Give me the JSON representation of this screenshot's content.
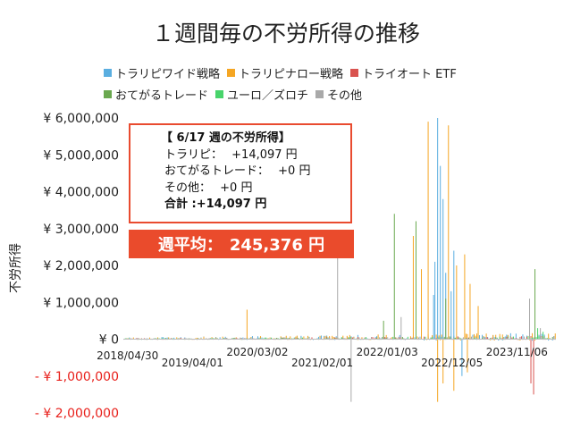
{
  "chart_data": {
    "type": "bar",
    "title": "１週間毎の不労所得の推移",
    "ylabel": "不労所得",
    "ylim": [
      -2000000,
      6000000
    ],
    "y_ticks": [
      {
        "value": 6000000,
        "label": "¥ 6,000,000"
      },
      {
        "value": 5000000,
        "label": "¥ 5,000,000"
      },
      {
        "value": 4000000,
        "label": "¥ 4,000,000"
      },
      {
        "value": 3000000,
        "label": "¥ 3,000,000"
      },
      {
        "value": 2000000,
        "label": "¥ 2,000,000"
      },
      {
        "value": 1000000,
        "label": "¥ 1,000,000"
      },
      {
        "value": 0,
        "label": "¥ 0"
      },
      {
        "value": -1000000,
        "label": "- ¥ 1,000,000"
      },
      {
        "value": -2000000,
        "label": "- ¥ 2,000,000"
      }
    ],
    "x_ticks": [
      "2018/04/30",
      "2019/04/01",
      "2020/03/02",
      "2021/02/01",
      "2022/01/03",
      "2022/12/05",
      "2023/11/06"
    ],
    "x_tick_weeks": [
      0,
      48,
      96,
      144,
      192,
      240,
      288
    ],
    "total_weeks": 320,
    "grid": false,
    "legend_position": "top",
    "series": [
      {
        "name": "トラリピワイド戦略",
        "color": "#5aaee0",
        "notable_weeks": [
          [
            232,
            6000000
          ],
          [
            234,
            4700000
          ],
          [
            236,
            3800000
          ],
          [
            230,
            2100000
          ],
          [
            238,
            1800000
          ],
          [
            242,
            1300000
          ],
          [
            244,
            2400000
          ],
          [
            250,
            -1000000
          ],
          [
            229,
            1200000
          ]
        ]
      },
      {
        "name": "トラリピナロー戦略",
        "color": "#f5a623",
        "notable_weeks": [
          [
            225,
            5900000
          ],
          [
            240,
            5800000
          ],
          [
            214,
            2800000
          ],
          [
            220,
            1900000
          ],
          [
            246,
            2000000
          ],
          [
            252,
            2300000
          ],
          [
            256,
            1500000
          ],
          [
            262,
            900000
          ],
          [
            236,
            -1200000
          ],
          [
            244,
            -1400000
          ],
          [
            254,
            -900000
          ],
          [
            232,
            -1700000
          ],
          [
            91,
            800000
          ]
        ]
      },
      {
        "name": "トライオート ETF",
        "color": "#d9534f",
        "notable_weeks": [
          [
            301,
            -1200000
          ],
          [
            303,
            -1500000
          ]
        ]
      },
      {
        "name": "おてがるトレード",
        "color": "#6aa84f",
        "notable_weeks": [
          [
            200,
            3400000
          ],
          [
            216,
            3200000
          ],
          [
            238,
            1100000
          ],
          [
            304,
            1900000
          ],
          [
            192,
            500000
          ]
        ]
      },
      {
        "name": "ユーロ／ズロチ",
        "color": "#48d46b",
        "notable_weeks": [
          [
            306,
            300000
          ],
          [
            310,
            200000
          ]
        ]
      },
      {
        "name": "その他",
        "color": "#a9a9a9",
        "notable_weeks": [
          [
            158,
            2400000
          ],
          [
            168,
            -1700000
          ],
          [
            205,
            600000
          ],
          [
            300,
            1100000
          ],
          [
            308,
            300000
          ]
        ]
      }
    ],
    "annotation": {
      "title": "【 6/17 週の不労所得】",
      "lines": [
        {
          "label": "トラリピ：",
          "value": "+14,097 円"
        },
        {
          "label": "おてがるトレード：",
          "value": "+0 円"
        },
        {
          "label": "その他：",
          "value": "+0 円"
        }
      ],
      "total_label": "合計 :",
      "total_value": "+14,097 円"
    },
    "weekly_average_label": "週平均：",
    "weekly_average_value": "245,376 円"
  }
}
